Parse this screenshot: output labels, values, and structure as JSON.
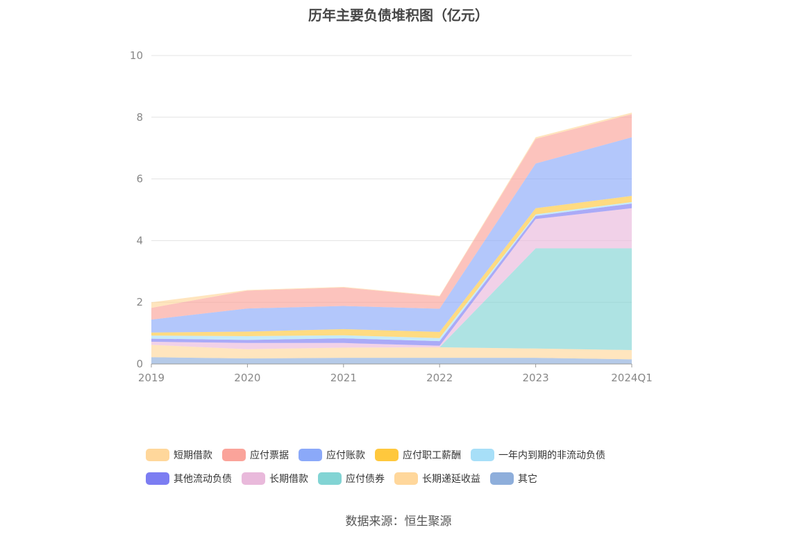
{
  "chart_data": {
    "type": "area",
    "stacked": true,
    "title": "历年主要负债堆积图（亿元）",
    "categories": [
      "2019",
      "2020",
      "2021",
      "2022",
      "2023",
      "2024Q1"
    ],
    "ylim": [
      0,
      10
    ],
    "yticks": [
      0,
      2,
      4,
      6,
      8,
      10
    ],
    "grid": true,
    "legend_position": "bottom",
    "series": [
      {
        "name": "其它",
        "color": "#8eaedb",
        "values": [
          0.22,
          0.18,
          0.2,
          0.2,
          0.2,
          0.15
        ]
      },
      {
        "name": "长期递延收益",
        "color": "#ffd79b",
        "values": [
          0.4,
          0.3,
          0.33,
          0.34,
          0.3,
          0.3
        ]
      },
      {
        "name": "应付债券",
        "color": "#82d4d4",
        "values": [
          0,
          0,
          0,
          0,
          3.25,
          3.3
        ]
      },
      {
        "name": "长期借款",
        "color": "#e9b9db",
        "values": [
          0.1,
          0.2,
          0.15,
          0.05,
          0.95,
          1.3
        ]
      },
      {
        "name": "其他流动负债",
        "color": "#7c7df2",
        "values": [
          0.1,
          0.1,
          0.15,
          0.15,
          0.1,
          0.15
        ]
      },
      {
        "name": "一年内到期的非流动负债",
        "color": "#a7dff8",
        "values": [
          0.1,
          0.12,
          0.1,
          0.1,
          0.05,
          0.05
        ]
      },
      {
        "name": "应付职工薪酬",
        "color": "#ffc83d",
        "values": [
          0.1,
          0.15,
          0.2,
          0.2,
          0.2,
          0.2
        ]
      },
      {
        "name": "应付账款",
        "color": "#8ba9f9",
        "values": [
          0.42,
          0.75,
          0.75,
          0.75,
          1.45,
          1.9
        ]
      },
      {
        "name": "应付票据",
        "color": "#faa39a",
        "values": [
          0.38,
          0.58,
          0.6,
          0.4,
          0.8,
          0.75
        ]
      },
      {
        "name": "短期借款",
        "color": "#ffd79b",
        "values": [
          0.18,
          0.02,
          0.02,
          0.02,
          0.05,
          0.05
        ]
      }
    ]
  },
  "legend": {
    "row1": [
      {
        "name": "短期借款",
        "color": "#ffd79b"
      },
      {
        "name": "应付票据",
        "color": "#faa39a"
      },
      {
        "name": "应付账款",
        "color": "#8ba9f9"
      },
      {
        "name": "应付职工薪酬",
        "color": "#ffc83d"
      },
      {
        "name": "一年内到期的非流动负债",
        "color": "#a7dff8"
      }
    ],
    "row2": [
      {
        "name": "其他流动负债",
        "color": "#7c7df2"
      },
      {
        "name": "长期借款",
        "color": "#e9b9db"
      },
      {
        "name": "应付债券",
        "color": "#82d4d4"
      },
      {
        "name": "长期递延收益",
        "color": "#ffd79b"
      },
      {
        "name": "其它",
        "color": "#8eaedb"
      }
    ]
  },
  "source": "数据来源：恒生聚源"
}
